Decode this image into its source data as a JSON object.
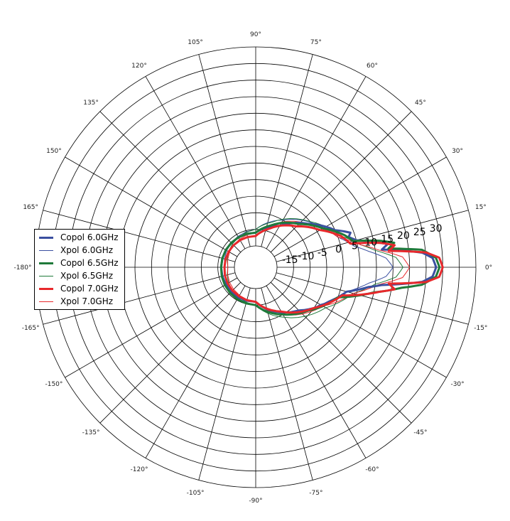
{
  "chart_data": {
    "type": "polar-line",
    "title": "",
    "theta_unit": "deg",
    "theta_ticks": [
      0,
      15,
      30,
      45,
      60,
      75,
      90,
      105,
      120,
      135,
      150,
      165,
      180,
      -165,
      -150,
      -135,
      -120,
      -105,
      -90,
      -75,
      -60,
      -45,
      -30,
      -15
    ],
    "theta_tick_labels": [
      "0°",
      "15°",
      "30°",
      "45°",
      "60°",
      "75°",
      "90°",
      "105°",
      "120°",
      "135°",
      "150°",
      "165°",
      "-180°",
      "-165°",
      "-150°",
      "-135°",
      "-120°",
      "-105°",
      "-90°",
      "-75°",
      "-60°",
      "-45°",
      "-30°",
      "-15°"
    ],
    "r_ticks": [
      -15,
      -10,
      -5,
      0,
      5,
      10,
      15,
      20,
      25,
      30
    ],
    "r_tick_labels": [
      "-15",
      "-10",
      "-5",
      "0",
      "5",
      "10",
      "15",
      "20",
      "25",
      "30"
    ],
    "rlim": [
      -20,
      40
    ],
    "grid": true,
    "legend_position": "center-left",
    "series": [
      {
        "name": "Copol 6.0GHz",
        "color": "#3a4fa0",
        "width": 3.0,
        "points": [
          [
            0,
            28
          ],
          [
            3,
            27
          ],
          [
            5,
            24
          ],
          [
            8,
            12
          ],
          [
            10,
            14
          ],
          [
            12,
            10
          ],
          [
            15,
            5
          ],
          [
            18,
            3
          ],
          [
            20,
            4
          ],
          [
            25,
            0
          ],
          [
            30,
            -2
          ],
          [
            40,
            -6
          ],
          [
            60,
            -12
          ],
          [
            90,
            -16
          ],
          [
            180,
            -16
          ],
          [
            -90,
            -16
          ],
          [
            -45,
            -8
          ],
          [
            -25,
            -2
          ],
          [
            -15,
            2
          ],
          [
            -10,
            8
          ],
          [
            -8,
            12
          ],
          [
            -5,
            24
          ],
          [
            -3,
            27
          ]
        ]
      },
      {
        "name": "Xpol 6.0GHz",
        "color": "#3a4fa0",
        "width": 1.0,
        "points": [
          [
            0,
            15
          ],
          [
            4,
            13
          ],
          [
            8,
            8
          ],
          [
            12,
            4
          ],
          [
            20,
            0
          ],
          [
            35,
            -4
          ],
          [
            60,
            -10
          ],
          [
            90,
            -15
          ],
          [
            180,
            -17
          ],
          [
            -90,
            -15
          ],
          [
            -60,
            -10
          ],
          [
            -30,
            -4
          ],
          [
            -15,
            2
          ],
          [
            -8,
            8
          ],
          [
            -4,
            13
          ]
        ]
      },
      {
        "name": "Copol 6.5GHz",
        "color": "#1f7a3a",
        "width": 3.0,
        "points": [
          [
            0,
            29
          ],
          [
            3,
            28
          ],
          [
            6,
            24
          ],
          [
            8,
            14
          ],
          [
            10,
            16
          ],
          [
            12,
            12
          ],
          [
            15,
            4
          ],
          [
            20,
            2
          ],
          [
            30,
            -3
          ],
          [
            45,
            -8
          ],
          [
            70,
            -13
          ],
          [
            90,
            -16
          ],
          [
            180,
            -16
          ],
          [
            -90,
            -15
          ],
          [
            -60,
            -10
          ],
          [
            -40,
            -6
          ],
          [
            -20,
            0
          ],
          [
            -12,
            10
          ],
          [
            -10,
            14
          ],
          [
            -8,
            18
          ],
          [
            -6,
            24
          ],
          [
            -3,
            28
          ]
        ]
      },
      {
        "name": "Xpol 6.5GHz",
        "color": "#1f7a3a",
        "width": 1.0,
        "points": [
          [
            0,
            18
          ],
          [
            4,
            16
          ],
          [
            8,
            10
          ],
          [
            12,
            6
          ],
          [
            20,
            1
          ],
          [
            40,
            -5
          ],
          [
            70,
            -12
          ],
          [
            90,
            -15
          ],
          [
            180,
            -18
          ],
          [
            -90,
            -15
          ],
          [
            -60,
            -9
          ],
          [
            -30,
            -2
          ],
          [
            -15,
            4
          ],
          [
            -8,
            10
          ],
          [
            -4,
            16
          ]
        ]
      },
      {
        "name": "Copol 7.0GHz",
        "color": "#e8282b",
        "width": 3.0,
        "points": [
          [
            0,
            30
          ],
          [
            3,
            29
          ],
          [
            5,
            25
          ],
          [
            7,
            14
          ],
          [
            9,
            16
          ],
          [
            11,
            12
          ],
          [
            14,
            3
          ],
          [
            20,
            1
          ],
          [
            30,
            -4
          ],
          [
            45,
            -9
          ],
          [
            70,
            -14
          ],
          [
            90,
            -17
          ],
          [
            180,
            -17
          ],
          [
            -90,
            -16
          ],
          [
            -60,
            -11
          ],
          [
            -35,
            -5
          ],
          [
            -18,
            1
          ],
          [
            -11,
            12
          ],
          [
            -9,
            16
          ],
          [
            -7,
            14
          ],
          [
            -5,
            25
          ],
          [
            -3,
            29
          ]
        ]
      },
      {
        "name": "Xpol 7.0GHz",
        "color": "#e8282b",
        "width": 1.0,
        "points": [
          [
            0,
            20
          ],
          [
            4,
            18
          ],
          [
            8,
            11
          ],
          [
            12,
            6
          ],
          [
            20,
            0
          ],
          [
            40,
            -6
          ],
          [
            70,
            -13
          ],
          [
            90,
            -16
          ],
          [
            180,
            -18
          ],
          [
            -90,
            -16
          ],
          [
            -60,
            -10
          ],
          [
            -30,
            -3
          ],
          [
            -15,
            4
          ],
          [
            -8,
            11
          ],
          [
            -4,
            18
          ]
        ]
      }
    ]
  }
}
